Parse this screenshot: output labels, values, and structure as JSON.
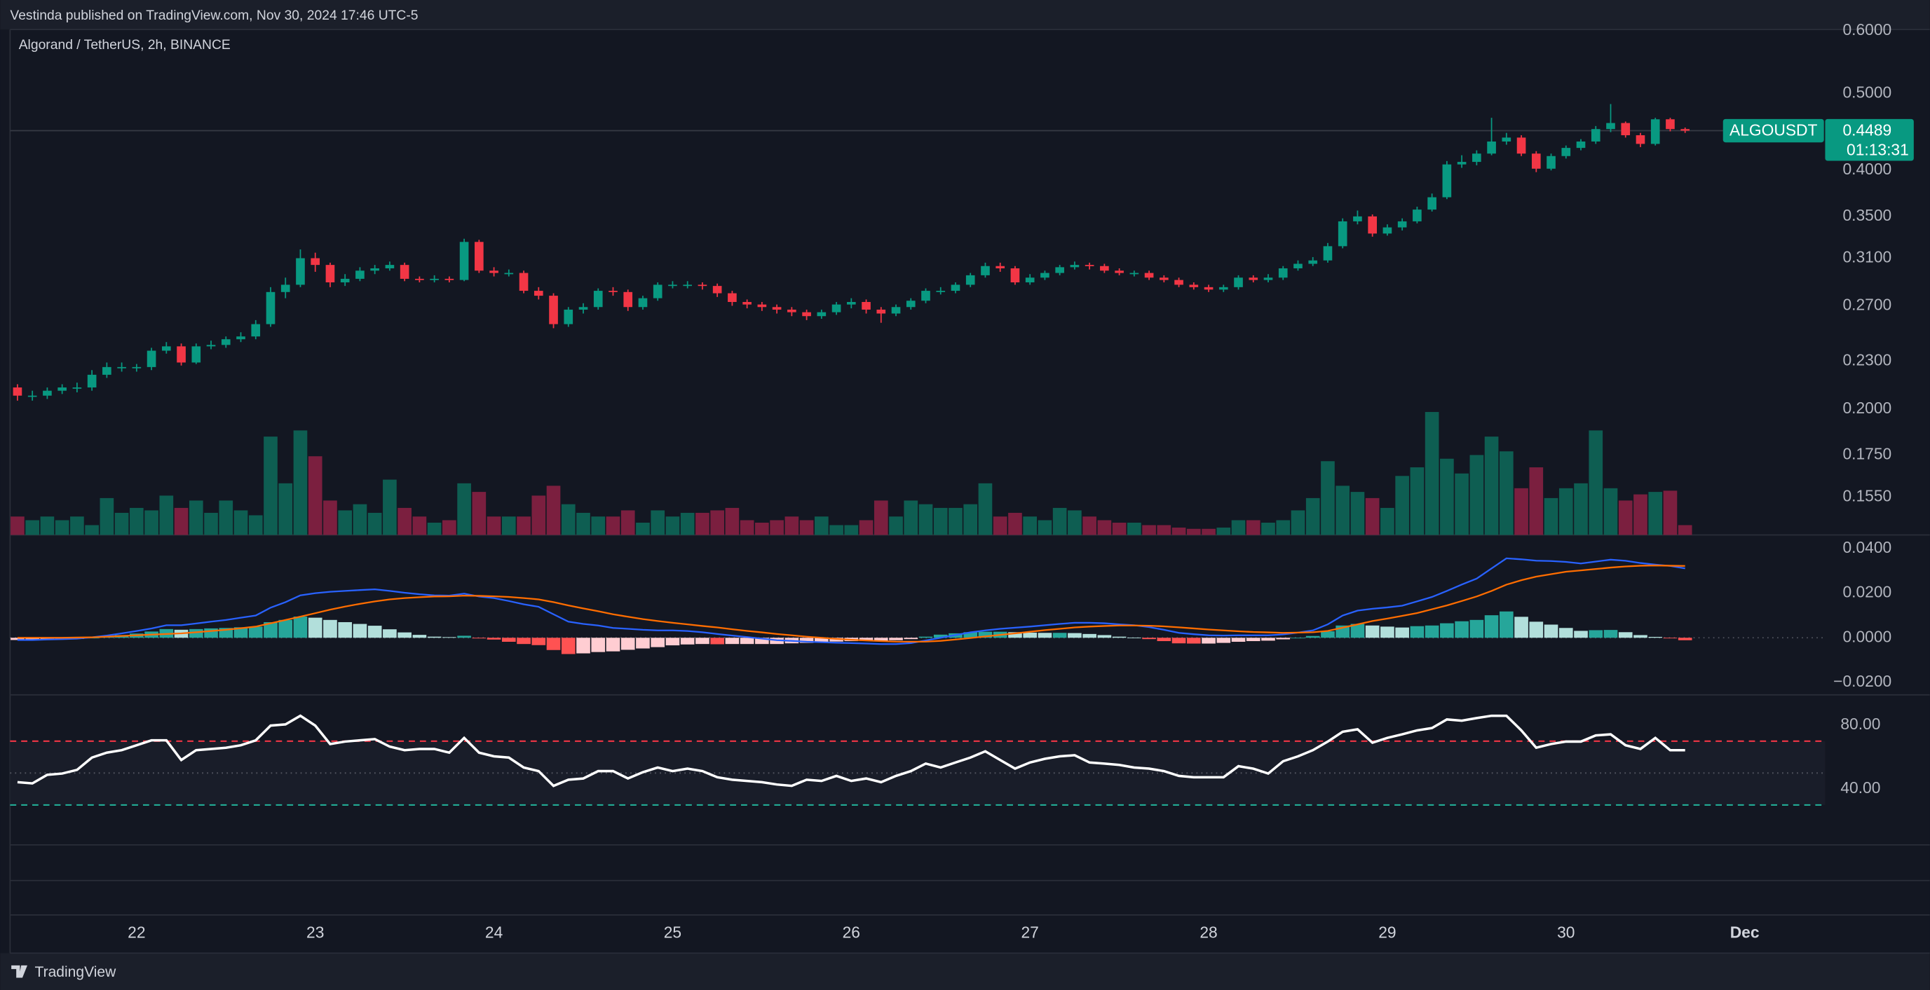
{
  "header": {
    "published": "Vestinda published on TradingView.com, Nov 30, 2024 17:46 UTC-5"
  },
  "footer": {
    "brand": "TradingView"
  },
  "chart_data": [
    {
      "type": "candlestick",
      "title": "Algorand / TetherUS, 2h, BINANCE",
      "symbol": "ALGOUSDT",
      "countdown": "01:13:31",
      "log_scale": true,
      "grid": false,
      "up_color": "#089981",
      "down_color": "#f23645",
      "volume_up_color": "#0e5e52",
      "volume_down_color": "#7b1f3f",
      "label_color": "#089981",
      "ylim": [
        0.1388,
        0.6
      ],
      "yticks": [
        {
          "value": 0.6,
          "label": "0.6000"
        },
        {
          "value": 0.5,
          "label": "0.5000"
        },
        {
          "value": 0.4,
          "label": "0.4000"
        },
        {
          "value": 0.35,
          "label": "0.3500"
        },
        {
          "value": 0.31,
          "label": "0.3100"
        },
        {
          "value": 0.27,
          "label": "0.2700"
        },
        {
          "value": 0.23,
          "label": "0.2300"
        },
        {
          "value": 0.2,
          "label": "0.2000"
        },
        {
          "value": 0.175,
          "label": "0.1750"
        },
        {
          "value": 0.155,
          "label": "0.1550"
        }
      ],
      "xticks": [
        {
          "value": 8,
          "label": "22"
        },
        {
          "value": 20,
          "label": "23"
        },
        {
          "value": 32,
          "label": "24"
        },
        {
          "value": 44,
          "label": "25"
        },
        {
          "value": 56,
          "label": "26"
        },
        {
          "value": 68,
          "label": "27"
        },
        {
          "value": 80,
          "label": "28"
        },
        {
          "value": 92,
          "label": "29"
        },
        {
          "value": 104,
          "label": "30"
        },
        {
          "value": 116,
          "label": "Dec"
        }
      ],
      "open": [
        0.213,
        0.208,
        0.208,
        0.211,
        0.213,
        0.213,
        0.221,
        0.226,
        0.226,
        0.226,
        0.237,
        0.24,
        0.229,
        0.24,
        0.241,
        0.245,
        0.247,
        0.256,
        0.281,
        0.287,
        0.31,
        0.304,
        0.289,
        0.292,
        0.299,
        0.301,
        0.304,
        0.292,
        0.291,
        0.292,
        0.291,
        0.325,
        0.299,
        0.297,
        0.297,
        0.282,
        0.278,
        0.256,
        0.267,
        0.269,
        0.282,
        0.281,
        0.269,
        0.276,
        0.287,
        0.287,
        0.287,
        0.286,
        0.28,
        0.273,
        0.271,
        0.269,
        0.267,
        0.265,
        0.262,
        0.265,
        0.271,
        0.273,
        0.267,
        0.264,
        0.269,
        0.274,
        0.282,
        0.282,
        0.287,
        0.295,
        0.303,
        0.301,
        0.289,
        0.293,
        0.297,
        0.302,
        0.304,
        0.303,
        0.299,
        0.297,
        0.297,
        0.293,
        0.291,
        0.287,
        0.285,
        0.283,
        0.285,
        0.293,
        0.291,
        0.293,
        0.301,
        0.305,
        0.308,
        0.321,
        0.345,
        0.35,
        0.333,
        0.339,
        0.345,
        0.357,
        0.37,
        0.407,
        0.41,
        0.42,
        0.435,
        0.44,
        0.42,
        0.402,
        0.417,
        0.427,
        0.435,
        0.451,
        0.459,
        0.443,
        0.432,
        0.464,
        0.451
      ],
      "high": [
        0.215,
        0.211,
        0.213,
        0.215,
        0.216,
        0.224,
        0.229,
        0.229,
        0.228,
        0.239,
        0.243,
        0.242,
        0.242,
        0.244,
        0.247,
        0.25,
        0.259,
        0.285,
        0.293,
        0.318,
        0.315,
        0.306,
        0.296,
        0.302,
        0.304,
        0.307,
        0.306,
        0.294,
        0.295,
        0.294,
        0.328,
        0.327,
        0.302,
        0.3,
        0.299,
        0.285,
        0.28,
        0.269,
        0.272,
        0.284,
        0.285,
        0.283,
        0.278,
        0.289,
        0.29,
        0.29,
        0.289,
        0.288,
        0.282,
        0.275,
        0.273,
        0.271,
        0.269,
        0.267,
        0.267,
        0.273,
        0.276,
        0.275,
        0.269,
        0.271,
        0.276,
        0.284,
        0.285,
        0.289,
        0.297,
        0.306,
        0.306,
        0.303,
        0.296,
        0.299,
        0.304,
        0.307,
        0.306,
        0.305,
        0.301,
        0.299,
        0.299,
        0.295,
        0.293,
        0.289,
        0.287,
        0.287,
        0.295,
        0.295,
        0.296,
        0.303,
        0.308,
        0.311,
        0.324,
        0.348,
        0.356,
        0.352,
        0.342,
        0.348,
        0.36,
        0.374,
        0.411,
        0.418,
        0.424,
        0.466,
        0.446,
        0.443,
        0.423,
        0.42,
        0.43,
        0.438,
        0.455,
        0.485,
        0.461,
        0.446,
        0.466,
        0.466,
        0.453
      ],
      "low": [
        0.205,
        0.205,
        0.206,
        0.209,
        0.21,
        0.211,
        0.219,
        0.223,
        0.223,
        0.224,
        0.235,
        0.227,
        0.228,
        0.238,
        0.239,
        0.243,
        0.245,
        0.254,
        0.276,
        0.285,
        0.298,
        0.285,
        0.286,
        0.29,
        0.296,
        0.299,
        0.29,
        0.289,
        0.289,
        0.289,
        0.29,
        0.297,
        0.294,
        0.294,
        0.28,
        0.275,
        0.253,
        0.254,
        0.264,
        0.267,
        0.278,
        0.266,
        0.267,
        0.274,
        0.284,
        0.284,
        0.283,
        0.277,
        0.27,
        0.268,
        0.266,
        0.264,
        0.262,
        0.259,
        0.26,
        0.263,
        0.268,
        0.264,
        0.257,
        0.262,
        0.267,
        0.272,
        0.279,
        0.28,
        0.285,
        0.293,
        0.298,
        0.287,
        0.287,
        0.291,
        0.295,
        0.3,
        0.3,
        0.297,
        0.295,
        0.294,
        0.291,
        0.289,
        0.285,
        0.283,
        0.281,
        0.281,
        0.283,
        0.289,
        0.289,
        0.291,
        0.299,
        0.303,
        0.306,
        0.319,
        0.342,
        0.33,
        0.331,
        0.336,
        0.343,
        0.355,
        0.368,
        0.403,
        0.406,
        0.418,
        0.431,
        0.417,
        0.398,
        0.4,
        0.414,
        0.424,
        0.432,
        0.447,
        0.44,
        0.428,
        0.43,
        0.448,
        0.446
      ],
      "close": [
        0.208,
        0.208,
        0.211,
        0.213,
        0.213,
        0.221,
        0.226,
        0.226,
        0.226,
        0.237,
        0.24,
        0.229,
        0.24,
        0.241,
        0.245,
        0.247,
        0.256,
        0.281,
        0.287,
        0.31,
        0.304,
        0.289,
        0.292,
        0.299,
        0.301,
        0.304,
        0.292,
        0.291,
        0.292,
        0.291,
        0.325,
        0.299,
        0.297,
        0.297,
        0.282,
        0.278,
        0.256,
        0.267,
        0.269,
        0.282,
        0.281,
        0.269,
        0.276,
        0.287,
        0.287,
        0.287,
        0.286,
        0.28,
        0.273,
        0.271,
        0.269,
        0.267,
        0.265,
        0.262,
        0.265,
        0.271,
        0.273,
        0.267,
        0.264,
        0.269,
        0.274,
        0.282,
        0.282,
        0.287,
        0.295,
        0.303,
        0.301,
        0.289,
        0.293,
        0.297,
        0.302,
        0.304,
        0.303,
        0.299,
        0.297,
        0.297,
        0.293,
        0.291,
        0.287,
        0.285,
        0.283,
        0.285,
        0.293,
        0.291,
        0.293,
        0.301,
        0.305,
        0.308,
        0.321,
        0.345,
        0.35,
        0.333,
        0.339,
        0.345,
        0.357,
        0.37,
        0.407,
        0.41,
        0.42,
        0.435,
        0.44,
        0.42,
        0.402,
        0.417,
        0.427,
        0.435,
        0.451,
        0.459,
        0.443,
        0.432,
        0.464,
        0.451,
        0.4489
      ],
      "volume_ylim": [
        0,
        100
      ],
      "volume": [
        15,
        12,
        15,
        12,
        15,
        8,
        30,
        18,
        22,
        20,
        32,
        22,
        28,
        18,
        28,
        20,
        16,
        80,
        42,
        85,
        64,
        28,
        20,
        25,
        18,
        45,
        22,
        15,
        10,
        12,
        42,
        35,
        15,
        15,
        15,
        32,
        40,
        25,
        18,
        15,
        15,
        20,
        10,
        20,
        15,
        18,
        18,
        20,
        22,
        12,
        10,
        12,
        15,
        12,
        15,
        8,
        8,
        12,
        28,
        15,
        28,
        25,
        22,
        22,
        25,
        42,
        15,
        18,
        15,
        12,
        22,
        20,
        15,
        12,
        10,
        10,
        8,
        8,
        6,
        5,
        5,
        6,
        12,
        12,
        10,
        12,
        20,
        30,
        60,
        40,
        35,
        30,
        22,
        48,
        55,
        100,
        62,
        50,
        65,
        80,
        68,
        38,
        55,
        30,
        38,
        42,
        85,
        38,
        28,
        33,
        35,
        36,
        8
      ]
    },
    {
      "type": "macd",
      "ylim": [
        -0.0256,
        0.0461
      ],
      "yticks": [
        {
          "value": 0.04,
          "label": "0.0400"
        },
        {
          "value": 0.02,
          "label": "0.0200"
        },
        {
          "value": 0,
          "label": "0.0000"
        },
        {
          "value": -0.02,
          "label": "−0.0200"
        }
      ],
      "zero_line": true,
      "macd": {
        "color": "#2962ff",
        "values": [
          -0.001,
          -0.001,
          -0.0008,
          -0.0006,
          -0.0004,
          0.0002,
          0.001,
          0.002,
          0.003,
          0.0042,
          0.0056,
          0.0056,
          0.0064,
          0.0072,
          0.008,
          0.009,
          0.01,
          0.0135,
          0.016,
          0.019,
          0.02,
          0.0206,
          0.021,
          0.0214,
          0.0217,
          0.021,
          0.0202,
          0.0195,
          0.019,
          0.0189,
          0.0198,
          0.0185,
          0.0178,
          0.0165,
          0.015,
          0.0139,
          0.0105,
          0.0072,
          0.0062,
          0.0055,
          0.0044,
          0.004,
          0.0036,
          0.0033,
          0.0033,
          0.003,
          0.0025,
          0.0017,
          0.001,
          0.0003,
          -0.0004,
          -0.0011,
          -0.0014,
          -0.0018,
          -0.002,
          -0.0022,
          -0.0024,
          -0.0026,
          -0.0028,
          -0.0028,
          -0.0024,
          -0.0012,
          0.0,
          0.0012,
          0.0024,
          0.0033,
          0.004,
          0.0045,
          0.005,
          0.0056,
          0.0062,
          0.0067,
          0.0067,
          0.0065,
          0.006,
          0.0056,
          0.0048,
          0.0036,
          0.0022,
          0.0016,
          0.0011,
          0.001,
          0.0011,
          0.0011,
          0.0011,
          0.0015,
          0.0023,
          0.0033,
          0.006,
          0.01,
          0.0122,
          0.013,
          0.0136,
          0.0144,
          0.0163,
          0.0183,
          0.021,
          0.0239,
          0.0265,
          0.0311,
          0.0356,
          0.0352,
          0.0346,
          0.0344,
          0.034,
          0.0333,
          0.0342,
          0.035,
          0.0345,
          0.0335,
          0.0328,
          0.0322,
          0.0311
        ]
      },
      "signal": {
        "color": "#ff6d00",
        "values": [
          0,
          0,
          0,
          0,
          0.0001,
          0.0002,
          0.0005,
          0.0008,
          0.0011,
          0.0014,
          0.0017,
          0.002,
          0.0025,
          0.003,
          0.0036,
          0.0043,
          0.005,
          0.0065,
          0.008,
          0.0095,
          0.011,
          0.0126,
          0.014,
          0.0152,
          0.0163,
          0.0172,
          0.0178,
          0.0182,
          0.0185,
          0.0186,
          0.0189,
          0.0188,
          0.0186,
          0.0183,
          0.0178,
          0.0172,
          0.016,
          0.0145,
          0.0132,
          0.0119,
          0.0105,
          0.0094,
          0.0084,
          0.0075,
          0.0067,
          0.006,
          0.0053,
          0.0046,
          0.0038,
          0.0031,
          0.0024,
          0.0017,
          0.0011,
          0.0005,
          0.0,
          -0.0005,
          -0.0009,
          -0.0012,
          -0.0015,
          -0.0017,
          -0.0018,
          -0.0017,
          -0.0014,
          -0.0008,
          -0.0001,
          0.0006,
          0.0013,
          0.002,
          0.0027,
          0.0034,
          0.004,
          0.0046,
          0.005,
          0.0053,
          0.0055,
          0.0055,
          0.0054,
          0.0051,
          0.0047,
          0.0042,
          0.0037,
          0.0033,
          0.0029,
          0.0026,
          0.0024,
          0.0022,
          0.0023,
          0.0025,
          0.0031,
          0.0045,
          0.006,
          0.0075,
          0.0086,
          0.0098,
          0.0111,
          0.0128,
          0.0145,
          0.0165,
          0.0185,
          0.021,
          0.0238,
          0.0258,
          0.0274,
          0.0285,
          0.0296,
          0.0302,
          0.0308,
          0.0315,
          0.032,
          0.0323,
          0.0324,
          0.0323,
          0.0322
        ]
      },
      "histogram": {
        "colors": [
          "#26a69a",
          "#b2dfdb",
          "#ffcdd2",
          "#ff5252"
        ],
        "values": [
          -0.001,
          -0.001,
          -0.0008,
          -0.0006,
          -0.0005,
          0.0,
          0.0005,
          0.0012,
          0.0019,
          0.0028,
          0.0039,
          0.0036,
          0.0039,
          0.0042,
          0.0044,
          0.0047,
          0.005,
          0.007,
          0.008,
          0.0095,
          0.009,
          0.008,
          0.007,
          0.0062,
          0.0054,
          0.0038,
          0.0024,
          0.0013,
          0.0005,
          0.0003,
          0.0009,
          -0.0003,
          -0.0008,
          -0.0018,
          -0.0028,
          -0.0033,
          -0.0055,
          -0.0073,
          -0.007,
          -0.0064,
          -0.0061,
          -0.0054,
          -0.0048,
          -0.0042,
          -0.0034,
          -0.003,
          -0.0028,
          -0.0029,
          -0.0028,
          -0.0028,
          -0.0028,
          -0.0028,
          -0.0025,
          -0.0023,
          -0.002,
          -0.0017,
          -0.0015,
          -0.0014,
          -0.0013,
          -0.0011,
          -0.0006,
          0.0005,
          0.0014,
          0.002,
          0.0025,
          0.0027,
          0.0027,
          0.0025,
          0.0023,
          0.0022,
          0.0022,
          0.0021,
          0.0017,
          0.0012,
          0.0005,
          0.0001,
          -0.0006,
          -0.0015,
          -0.0025,
          -0.0026,
          -0.0026,
          -0.0023,
          -0.0018,
          -0.0015,
          -0.0013,
          -0.0007,
          0.0,
          0.0008,
          0.0029,
          0.0055,
          0.0062,
          0.0055,
          0.005,
          0.0046,
          0.0052,
          0.0055,
          0.0065,
          0.0074,
          0.008,
          0.0101,
          0.0118,
          0.0094,
          0.0072,
          0.0059,
          0.0044,
          0.0031,
          0.0034,
          0.0035,
          0.0025,
          0.0012,
          0.0004,
          -0.0001,
          -0.0011
        ]
      }
    },
    {
      "type": "rsi",
      "color": "#ffffff",
      "ylim": [
        5,
        99
      ],
      "yticks": [
        {
          "value": 80,
          "label": "80.00"
        },
        {
          "value": 40,
          "label": "40.00"
        }
      ],
      "upper_band": 70,
      "middle_band": 50,
      "lower_band": 30,
      "upper_color": "#f23645",
      "middle_color": "#50535e",
      "lower_color": "#22ab94",
      "values": [
        44.3,
        43.5,
        48.9,
        49.7,
        52.0,
        59.7,
        62.8,
        64.3,
        67.4,
        70.5,
        70.5,
        58.2,
        64.3,
        65.1,
        65.9,
        67.4,
        70.5,
        79.7,
        80.5,
        85.9,
        79.7,
        68.2,
        69.7,
        70.5,
        71.3,
        66.6,
        64.3,
        65.1,
        65.1,
        62.8,
        72.0,
        62.8,
        60.5,
        59.7,
        53.5,
        51.2,
        42.0,
        45.8,
        46.6,
        51.2,
        51.2,
        46.6,
        50.5,
        53.5,
        51.2,
        52.8,
        51.2,
        47.4,
        45.8,
        45.1,
        44.3,
        42.8,
        42.0,
        45.8,
        45.1,
        48.2,
        45.1,
        46.6,
        44.3,
        48.2,
        51.2,
        55.9,
        53.5,
        56.6,
        59.7,
        63.6,
        58.2,
        52.8,
        56.6,
        58.9,
        60.5,
        61.2,
        56.6,
        55.9,
        55.1,
        53.5,
        52.8,
        51.2,
        48.2,
        47.4,
        47.4,
        47.4,
        54.3,
        52.8,
        49.7,
        57.4,
        60.5,
        64.3,
        69.7,
        75.9,
        77.4,
        69.0,
        72.0,
        74.3,
        76.7,
        78.2,
        83.6,
        82.8,
        84.4,
        85.9,
        85.9,
        76.7,
        65.9,
        68.2,
        69.7,
        69.7,
        73.6,
        74.3,
        67.4,
        65.1,
        72.0,
        64.3,
        64.3
      ]
    }
  ]
}
